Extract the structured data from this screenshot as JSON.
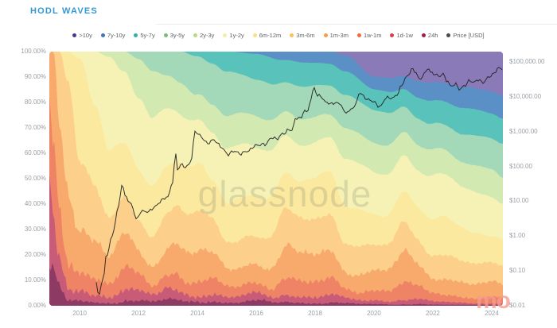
{
  "page": {
    "title": "HODL WAVES"
  },
  "watermarks": {
    "center": "glassnode",
    "corner": "mo"
  },
  "chart_data": {
    "type": "area",
    "stacked": true,
    "title": "HODL WAVES",
    "legend_position": "top",
    "x_axis": {
      "range": [
        2008.97,
        2024.38
      ],
      "ticks": [
        "2010",
        "2012",
        "2014",
        "2016",
        "2018",
        "2020",
        "2022",
        "2024"
      ]
    },
    "y_left": {
      "label": "supply percent",
      "range": [
        0,
        100
      ],
      "ticks": [
        "100.00%",
        "90.00%",
        "80.00%",
        "70.00%",
        "60.00%",
        "50.00%",
        "40.00%",
        "30.00%",
        "20.00%",
        "10.00%",
        "0.00%"
      ]
    },
    "y_right": {
      "label": "price",
      "scale": "log",
      "ticks": [
        {
          "v": 100000,
          "label": "$100,000.00"
        },
        {
          "v": 10000,
          "label": "$10,000.00"
        },
        {
          "v": 1000,
          "label": "$1,000.00"
        },
        {
          "v": 100,
          "label": "$100.00"
        },
        {
          "v": 10,
          "label": "$10.00"
        },
        {
          "v": 1,
          "label": "$1.00"
        },
        {
          "v": 0.1,
          "label": "$0.10"
        },
        {
          "v": 0.01,
          "label": "$0.01"
        }
      ]
    },
    "x": [
      2008.97,
      2009.1,
      2009.3,
      2009.6,
      2010.0,
      2010.5,
      2011.0,
      2011.5,
      2012.0,
      2012.5,
      2013.0,
      2013.4,
      2014.0,
      2014.5,
      2015.0,
      2016.0,
      2017.0,
      2017.9,
      2018.5,
      2019.0,
      2020.0,
      2021.0,
      2021.5,
      2022.0,
      2023.0,
      2024.0,
      2024.38
    ],
    "series": [
      {
        "name": ">10y",
        "dot": "#433a8c",
        "fill": "#8a7ab8",
        "values": [
          0,
          0,
          0,
          0,
          0,
          0,
          0,
          0,
          0,
          0,
          0,
          0,
          0,
          0,
          0,
          0,
          0,
          0,
          0,
          1.5,
          10,
          11,
          11.5,
          12,
          14,
          16,
          17
        ]
      },
      {
        "name": "7y-10y",
        "dot": "#3d78b8",
        "fill": "#5b90c7",
        "values": [
          0,
          0,
          0,
          0,
          0,
          0,
          0,
          0,
          0,
          0,
          0,
          0,
          0,
          0,
          0,
          1,
          4,
          4.5,
          5,
          6,
          5,
          6,
          6.5,
          7,
          8,
          9,
          9
        ]
      },
      {
        "name": "5y-7y",
        "dot": "#30b1a6",
        "fill": "#59c3bb",
        "values": [
          0,
          0,
          0,
          0,
          0,
          0,
          0,
          0,
          0,
          0,
          0,
          0,
          2,
          5,
          8,
          10,
          10,
          9,
          9,
          9,
          8,
          8,
          8.5,
          9,
          10,
          10,
          10
        ]
      },
      {
        "name": "3y-5y",
        "dot": "#72c376",
        "fill": "#a3d8b8",
        "values": [
          0,
          0,
          0,
          0,
          0,
          0,
          0,
          0,
          3,
          8,
          11,
          12,
          15,
          16,
          17,
          15,
          13,
          12,
          12,
          13,
          13,
          11,
          10.5,
          10,
          11,
          12,
          13
        ]
      },
      {
        "name": "2y-3y",
        "dot": "#b5dc7d",
        "fill": "#d3e9b2",
        "values": [
          0,
          0,
          0,
          0,
          0,
          0,
          2,
          8,
          15,
          18,
          15,
          13,
          10,
          11,
          12,
          13,
          11,
          9.5,
          9,
          12,
          12,
          10,
          10,
          10,
          10,
          11,
          10
        ]
      },
      {
        "name": "1y-2y",
        "dot": "#eff0a6",
        "fill": "#f6f2b6",
        "values": [
          0,
          0,
          0,
          0,
          3,
          22,
          35,
          28,
          27,
          25,
          25,
          20,
          18,
          19,
          20,
          20,
          17,
          13,
          13,
          18,
          18,
          15,
          14,
          16,
          17,
          16,
          14
        ]
      },
      {
        "name": "6m-12m",
        "dot": "#fae284",
        "fill": "#fce9a0",
        "values": [
          0,
          0,
          0,
          10,
          40,
          34,
          28,
          23,
          20,
          18,
          18,
          18,
          20,
          17,
          16,
          15,
          15,
          17,
          17,
          14,
          12,
          13,
          14,
          14,
          13,
          11,
          12
        ]
      },
      {
        "name": "3m-6m",
        "dot": "#fbbf5c",
        "fill": "#fccf8b",
        "values": [
          0,
          0,
          30,
          40,
          25,
          20,
          15,
          15,
          14,
          12,
          12,
          14,
          15,
          14,
          12,
          11,
          13,
          15,
          15,
          12,
          9,
          11,
          10.5,
          10,
          8,
          7,
          8
        ]
      },
      {
        "name": "1m-3m",
        "dot": "#fa9c45",
        "fill": "#f8a96c",
        "values": [
          25,
          45,
          40,
          30,
          16,
          13,
          10,
          13,
          10,
          9,
          8,
          12,
          11,
          9,
          8,
          8,
          9,
          11,
          11,
          8,
          7,
          9,
          8.5,
          7,
          6,
          5,
          4.5
        ]
      },
      {
        "name": "1w-1m",
        "dot": "#f26a3d",
        "fill": "#ef8365",
        "values": [
          35,
          30,
          17,
          14,
          9,
          6,
          5,
          7,
          6,
          4,
          4,
          6,
          6,
          5,
          4,
          4,
          5,
          5.5,
          5.5,
          4,
          4,
          4.5,
          4,
          3.5,
          2.5,
          2.2,
          2
        ]
      },
      {
        "name": "1d-1w",
        "dot": "#da3f44",
        "fill": "#c85b78",
        "values": [
          25,
          15,
          8,
          4.5,
          5,
          3,
          3,
          4,
          3,
          2.5,
          2.5,
          3.5,
          3,
          2.5,
          2,
          2.5,
          2,
          2.5,
          2.5,
          1.8,
          1.5,
          1.2,
          1.5,
          1.2,
          0.8,
          0.6,
          0.4
        ]
      },
      {
        "name": "24h",
        "dot": "#a31d42",
        "fill": "#8d3a64",
        "values": [
          15,
          10,
          5,
          1.5,
          2,
          1,
          1,
          2,
          1.5,
          1.5,
          1.5,
          1.5,
          2,
          1.5,
          1,
          1.5,
          1,
          1,
          1,
          0.7,
          0.5,
          0.3,
          0.5,
          0.3,
          0.2,
          0.2,
          0.1
        ]
      }
    ],
    "price_series": {
      "name": "Price [USD]",
      "dot": "#4a4a4a",
      "color": "#222222",
      "points": [
        [
          2010.54,
          0.06
        ],
        [
          2010.65,
          0.02
        ],
        [
          2010.8,
          0.06
        ],
        [
          2010.9,
          0.25
        ],
        [
          2011.1,
          0.95
        ],
        [
          2011.3,
          6
        ],
        [
          2011.45,
          31
        ],
        [
          2011.55,
          14
        ],
        [
          2011.75,
          8
        ],
        [
          2011.95,
          3
        ],
        [
          2012.1,
          5.4
        ],
        [
          2012.3,
          4.9
        ],
        [
          2012.55,
          6.8
        ],
        [
          2012.8,
          11
        ],
        [
          2013.0,
          13.5
        ],
        [
          2013.15,
          35
        ],
        [
          2013.27,
          230
        ],
        [
          2013.33,
          83
        ],
        [
          2013.45,
          112
        ],
        [
          2013.6,
          95
        ],
        [
          2013.78,
          135
        ],
        [
          2013.88,
          500
        ],
        [
          2013.93,
          1130
        ],
        [
          2014.05,
          800
        ],
        [
          2014.2,
          620
        ],
        [
          2014.35,
          450
        ],
        [
          2014.55,
          590
        ],
        [
          2014.8,
          370
        ],
        [
          2015.05,
          215
        ],
        [
          2015.2,
          280
        ],
        [
          2015.45,
          235
        ],
        [
          2015.7,
          270
        ],
        [
          2015.9,
          360
        ],
        [
          2016.05,
          420
        ],
        [
          2016.3,
          425
        ],
        [
          2016.5,
          650
        ],
        [
          2016.7,
          640
        ],
        [
          2016.95,
          900
        ],
        [
          2017.1,
          1150
        ],
        [
          2017.2,
          1050
        ],
        [
          2017.35,
          2500
        ],
        [
          2017.5,
          2350
        ],
        [
          2017.65,
          4300
        ],
        [
          2017.72,
          3300
        ],
        [
          2017.85,
          8000
        ],
        [
          2017.96,
          19200
        ],
        [
          2018.08,
          10200
        ],
        [
          2018.18,
          11100
        ],
        [
          2018.35,
          6900
        ],
        [
          2018.55,
          6400
        ],
        [
          2018.75,
          6600
        ],
        [
          2018.88,
          6300
        ],
        [
          2018.98,
          3500
        ],
        [
          2019.15,
          3900
        ],
        [
          2019.35,
          5300
        ],
        [
          2019.5,
          12900
        ],
        [
          2019.65,
          10300
        ],
        [
          2019.8,
          8200
        ],
        [
          2020.0,
          7200
        ],
        [
          2020.2,
          5000
        ],
        [
          2020.4,
          9300
        ],
        [
          2020.6,
          9150
        ],
        [
          2020.8,
          11500
        ],
        [
          2020.95,
          23000
        ],
        [
          2021.1,
          36000
        ],
        [
          2021.3,
          63200
        ],
        [
          2021.42,
          49000
        ],
        [
          2021.55,
          31500
        ],
        [
          2021.68,
          42000
        ],
        [
          2021.85,
          67500
        ],
        [
          2021.95,
          47000
        ],
        [
          2022.1,
          43500
        ],
        [
          2022.25,
          38500
        ],
        [
          2022.32,
          45000
        ],
        [
          2022.5,
          29000
        ],
        [
          2022.6,
          19500
        ],
        [
          2022.78,
          23500
        ],
        [
          2022.92,
          15800
        ],
        [
          2023.08,
          21500
        ],
        [
          2023.25,
          28300
        ],
        [
          2023.4,
          26800
        ],
        [
          2023.55,
          30400
        ],
        [
          2023.7,
          25900
        ],
        [
          2023.88,
          34500
        ],
        [
          2024.0,
          44000
        ],
        [
          2024.12,
          48000
        ],
        [
          2024.22,
          73000
        ],
        [
          2024.3,
          61500
        ],
        [
          2024.38,
          67000
        ]
      ]
    }
  }
}
